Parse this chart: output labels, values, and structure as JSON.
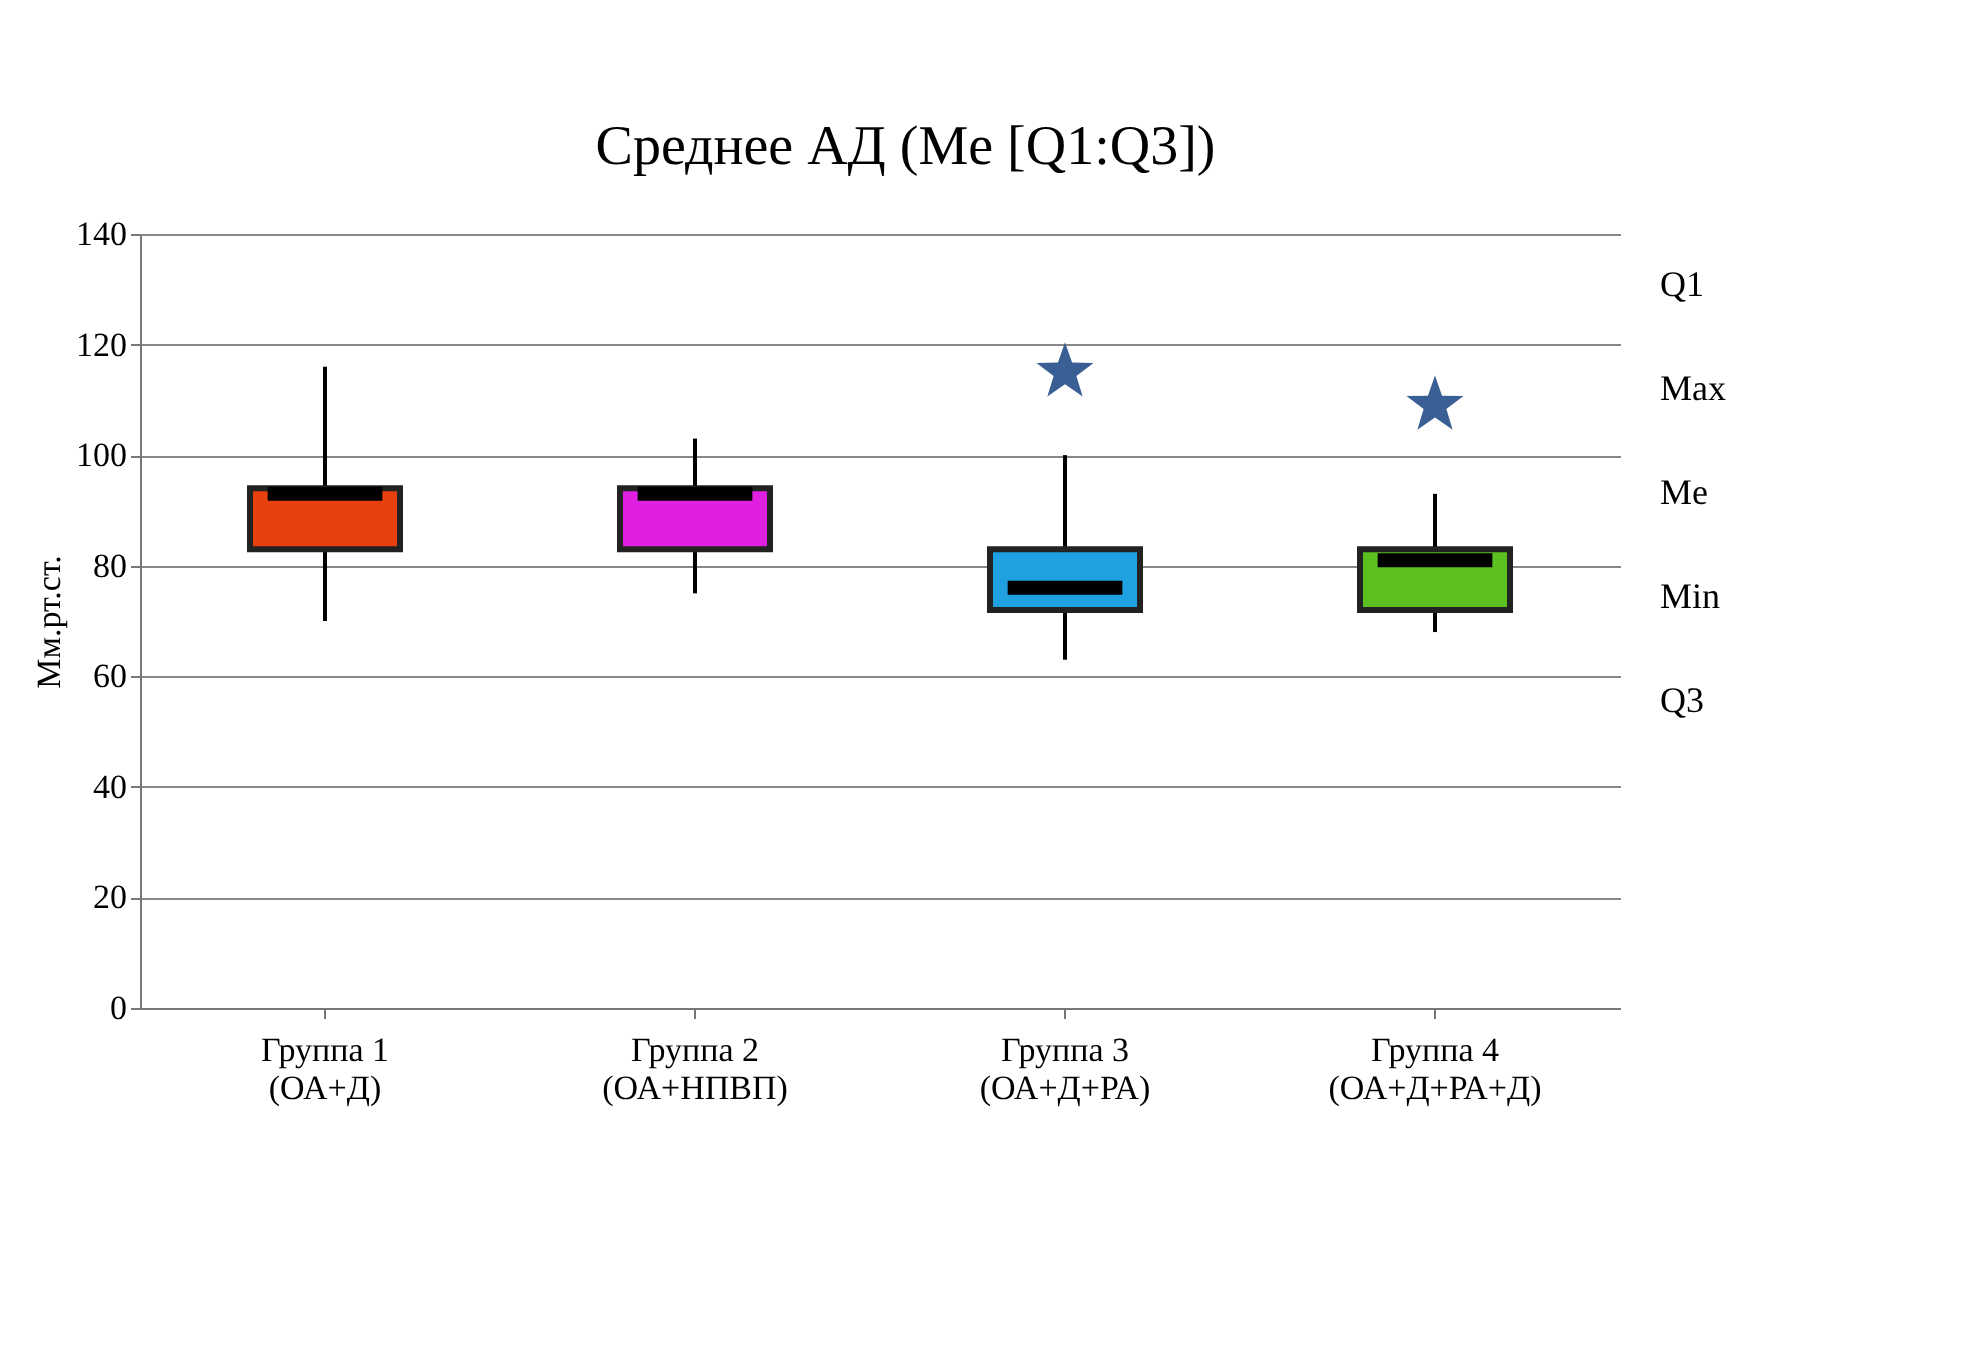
{
  "chart_data": {
    "type": "box",
    "title": "Среднее АД (Me [Q1:Q3])",
    "ylabel": "Мм.рт.ст.",
    "categories": [
      "Группа 1\n(ОА+Д)",
      "Группа 2\n(ОА+НПВП)",
      "Группа 3\n(ОА+Д+РА)",
      "Группа 4\n(ОА+Д+РА+Д)"
    ],
    "boxes": [
      {
        "low": 70,
        "q1": 83,
        "median": 93,
        "q3": 94,
        "high": 116
      },
      {
        "low": 75,
        "q1": 83,
        "median": 93,
        "q3": 94,
        "high": 103
      },
      {
        "low": 63,
        "q1": 72,
        "median": 76,
        "q3": 83,
        "high": 100
      },
      {
        "low": 68,
        "q1": 72,
        "median": 81,
        "q3": 83,
        "high": 93
      }
    ],
    "colors": [
      "#e8400c",
      "#e020e0",
      "#1fa0e0",
      "#5cc020"
    ],
    "series": [
      {
        "type": "scatter",
        "marker": "star",
        "color": "#3a5f95",
        "x": [
          "Группа 3\n(ОА+Д+РА)",
          "Группа 4\n(ОА+Д+РА+Д)"
        ],
        "values": [
          115,
          109
        ]
      }
    ],
    "ylim": [
      0,
      140
    ],
    "yticks": [
      0,
      20,
      40,
      60,
      80,
      100,
      120,
      140
    ],
    "grid": "y",
    "annotations": [
      "Q1",
      "Max",
      "Me",
      "Min",
      "Q3"
    ]
  }
}
